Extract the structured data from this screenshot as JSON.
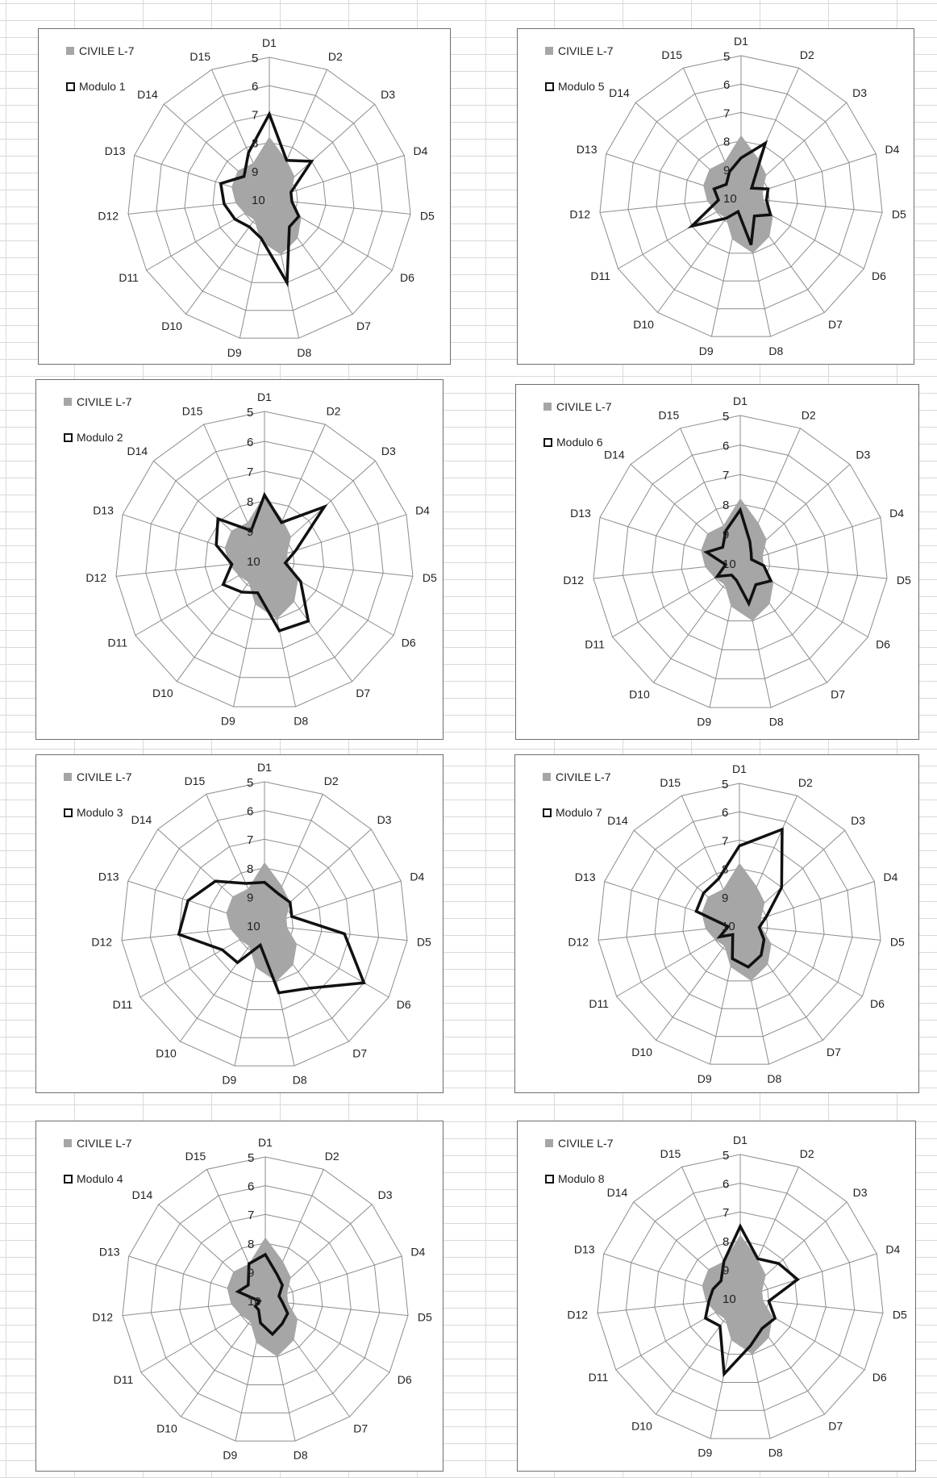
{
  "chart_data": [
    {
      "type": "radar",
      "categories": [
        "D1",
        "D2",
        "D3",
        "D4",
        "D5",
        "D6",
        "D7",
        "D8",
        "D9",
        "D10",
        "D11",
        "D12",
        "D13",
        "D14",
        "D15"
      ],
      "scale": {
        "ticks": [
          "5",
          "6",
          "7",
          "8",
          "9",
          "10"
        ],
        "outer": 5,
        "center": 10
      },
      "series": [
        {
          "name": "CIVILE L-7",
          "style": "area",
          "color": "#a6a6a6",
          "values": [
            7.8,
            8.5,
            8.8,
            9.2,
            9.2,
            8.7,
            8.3,
            8.0,
            8.5,
            9.1,
            9.0,
            8.8,
            8.6,
            8.5,
            8.6
          ]
        },
        {
          "name": "Modulo 1",
          "style": "line",
          "color": "#111111",
          "values": [
            7.0,
            8.5,
            8.0,
            9.2,
            9.2,
            8.8,
            8.8,
            7.0,
            8.6,
            8.8,
            8.6,
            8.4,
            8.2,
            8.8,
            8.2
          ]
        }
      ]
    },
    {
      "type": "radar",
      "categories": [
        "D1",
        "D2",
        "D3",
        "D4",
        "D5",
        "D6",
        "D7",
        "D8",
        "D9",
        "D10",
        "D11",
        "D12",
        "D13",
        "D14",
        "D15"
      ],
      "scale": {
        "ticks": [
          "5",
          "6",
          "7",
          "8",
          "9",
          "10"
        ],
        "outer": 5,
        "center": 10
      },
      "series": [
        {
          "name": "CIVILE L-7",
          "style": "area",
          "color": "#a6a6a6",
          "values": [
            7.8,
            8.5,
            8.8,
            9.2,
            9.2,
            8.7,
            8.3,
            8.0,
            8.5,
            9.1,
            9.0,
            8.8,
            8.6,
            8.5,
            8.6
          ]
        },
        {
          "name": "Modulo 5",
          "style": "line",
          "color": "#111111",
          "values": [
            8.6,
            7.9,
            9.5,
            9.0,
            9.1,
            8.8,
            9.2,
            8.3,
            9.5,
            9.1,
            8.0,
            9.2,
            9.0,
            9.3,
            9.0
          ]
        }
      ]
    },
    {
      "type": "radar",
      "categories": [
        "D1",
        "D2",
        "D3",
        "D4",
        "D5",
        "D6",
        "D7",
        "D8",
        "D9",
        "D10",
        "D11",
        "D12",
        "D13",
        "D14",
        "D15"
      ],
      "scale": {
        "ticks": [
          "5",
          "6",
          "7",
          "8",
          "9",
          "10"
        ],
        "outer": 5,
        "center": 10
      },
      "series": [
        {
          "name": "CIVILE L-7",
          "style": "area",
          "color": "#a6a6a6",
          "values": [
            7.8,
            8.5,
            8.8,
            9.2,
            9.2,
            8.7,
            8.3,
            8.0,
            8.5,
            9.1,
            9.0,
            8.8,
            8.6,
            8.5,
            8.6
          ]
        },
        {
          "name": "Modulo 2",
          "style": "line",
          "color": "#111111",
          "values": [
            7.8,
            8.6,
            7.3,
            8.9,
            9.3,
            8.6,
            7.5,
            7.6,
            8.9,
            8.7,
            8.4,
            8.9,
            8.3,
            7.9,
            8.9
          ]
        }
      ]
    },
    {
      "type": "radar",
      "categories": [
        "D1",
        "D2",
        "D3",
        "D4",
        "D5",
        "D6",
        "D7",
        "D8",
        "D9",
        "D10",
        "D11",
        "D12",
        "D13",
        "D14",
        "D15"
      ],
      "scale": {
        "ticks": [
          "5",
          "6",
          "7",
          "8",
          "9",
          "10"
        ],
        "outer": 5,
        "center": 10
      },
      "series": [
        {
          "name": "CIVILE L-7",
          "style": "area",
          "color": "#a6a6a6",
          "values": [
            7.8,
            8.5,
            8.8,
            9.2,
            9.2,
            8.7,
            8.3,
            8.0,
            8.5,
            9.1,
            9.0,
            8.8,
            8.6,
            8.5,
            8.6
          ]
        },
        {
          "name": "Modulo 6",
          "style": "line",
          "color": "#111111",
          "values": [
            8.2,
            9.2,
            9.5,
            9.6,
            9.2,
            8.8,
            9.1,
            8.6,
            9.4,
            9.5,
            9.1,
            9.5,
            8.8,
            9.2,
            8.8
          ]
        }
      ]
    },
    {
      "type": "radar",
      "categories": [
        "D1",
        "D2",
        "D3",
        "D4",
        "D5",
        "D6",
        "D7",
        "D8",
        "D9",
        "D10",
        "D11",
        "D12",
        "D13",
        "D14",
        "D15"
      ],
      "scale": {
        "ticks": [
          "5",
          "6",
          "7",
          "8",
          "9",
          "10"
        ],
        "outer": 5,
        "center": 10
      },
      "series": [
        {
          "name": "CIVILE L-7",
          "style": "area",
          "color": "#a6a6a6",
          "values": [
            7.8,
            8.5,
            8.8,
            9.2,
            9.2,
            8.7,
            8.3,
            8.0,
            8.5,
            9.1,
            9.0,
            8.8,
            8.6,
            8.5,
            8.6
          ]
        },
        {
          "name": "Modulo 3",
          "style": "line",
          "color": "#111111",
          "values": [
            8.5,
            8.8,
            8.8,
            9.0,
            7.2,
            6.0,
            7.3,
            7.6,
            9.3,
            8.4,
            8.3,
            7.0,
            7.2,
            7.7,
            8.4
          ]
        }
      ]
    },
    {
      "type": "radar",
      "categories": [
        "D1",
        "D2",
        "D3",
        "D4",
        "D5",
        "D6",
        "D7",
        "D8",
        "D9",
        "D10",
        "D11",
        "D12",
        "D13",
        "D14",
        "D15"
      ],
      "scale": {
        "ticks": [
          "5",
          "6",
          "7",
          "8",
          "9",
          "10"
        ],
        "outer": 5,
        "center": 10
      },
      "series": [
        {
          "name": "CIVILE L-7",
          "style": "area",
          "color": "#a6a6a6",
          "values": [
            7.8,
            8.5,
            8.8,
            9.2,
            9.2,
            8.7,
            8.3,
            8.0,
            8.5,
            9.1,
            9.0,
            8.8,
            8.6,
            8.5,
            8.6
          ]
        },
        {
          "name": "Modulo 7",
          "style": "line",
          "color": "#111111",
          "values": [
            7.2,
            6.3,
            8.0,
            9.0,
            9.3,
            9.0,
            8.7,
            8.5,
            8.8,
            9.6,
            9.2,
            9.6,
            8.4,
            8.3,
            8.2
          ]
        }
      ]
    },
    {
      "type": "radar",
      "categories": [
        "D1",
        "D2",
        "D3",
        "D4",
        "D5",
        "D6",
        "D7",
        "D8",
        "D9",
        "D10",
        "D11",
        "D12",
        "D13",
        "D14",
        "D15"
      ],
      "scale": {
        "ticks": [
          "5",
          "6",
          "7",
          "8",
          "9",
          "10"
        ],
        "outer": 5,
        "center": 10
      },
      "series": [
        {
          "name": "CIVILE L-7",
          "style": "area",
          "color": "#a6a6a6",
          "values": [
            7.8,
            8.5,
            8.8,
            9.2,
            9.2,
            8.7,
            8.3,
            8.0,
            8.5,
            9.1,
            9.0,
            8.8,
            8.6,
            8.5,
            8.6
          ]
        },
        {
          "name": "Modulo 4",
          "style": "line",
          "color": "#111111",
          "values": [
            8.4,
            9.0,
            9.2,
            9.5,
            9.4,
            9.1,
            9.0,
            8.8,
            9.2,
            9.6,
            9.6,
            9.8,
            9.0,
            9.2,
            8.6
          ]
        }
      ]
    },
    {
      "type": "radar",
      "categories": [
        "D1",
        "D2",
        "D3",
        "D4",
        "D5",
        "D6",
        "D7",
        "D8",
        "D9",
        "D10",
        "D11",
        "D12",
        "D13",
        "D14",
        "D15"
      ],
      "scale": {
        "ticks": [
          "5",
          "6",
          "7",
          "8",
          "9",
          "10"
        ],
        "outer": 5,
        "center": 10
      },
      "series": [
        {
          "name": "CIVILE L-7",
          "style": "area",
          "color": "#a6a6a6",
          "values": [
            7.8,
            8.5,
            8.8,
            9.2,
            9.2,
            8.7,
            8.3,
            8.0,
            8.5,
            9.1,
            9.0,
            8.8,
            8.6,
            8.5,
            8.6
          ]
        },
        {
          "name": "Modulo 8",
          "style": "line",
          "color": "#111111",
          "values": [
            7.5,
            8.5,
            8.2,
            7.9,
            9.0,
            8.6,
            8.7,
            8.3,
            7.3,
            8.8,
            8.6,
            8.9,
            9.0,
            9.1,
            8.6
          ]
        }
      ]
    }
  ]
}
